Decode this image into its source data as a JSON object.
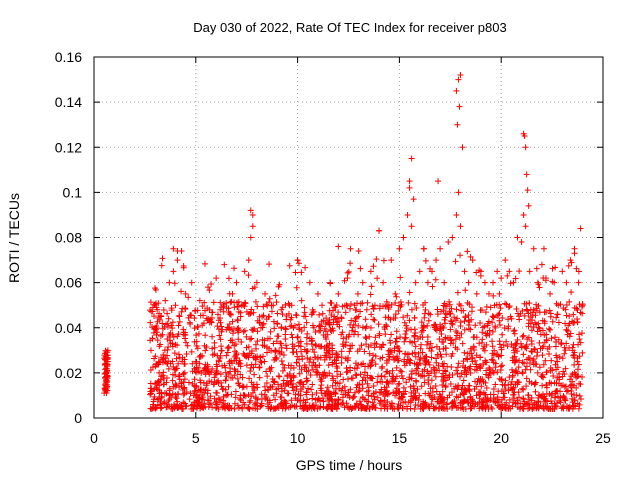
{
  "chart_data": {
    "type": "scatter",
    "title": "Day 030 of 2022, Rate Of TEC Index for receiver p803",
    "xlabel": "GPS time / hours",
    "ylabel": "ROTI / TECUs",
    "xlim": [
      0,
      25
    ],
    "ylim": [
      0,
      0.16
    ],
    "x_ticks": [
      0,
      5,
      10,
      15,
      20,
      25
    ],
    "x_tick_labels": [
      "0",
      "5",
      "10",
      "15",
      "20",
      "25"
    ],
    "y_ticks": [
      0,
      0.02,
      0.04,
      0.06,
      0.08,
      0.1,
      0.12,
      0.14,
      0.16
    ],
    "y_tick_labels": [
      "0",
      "0.02",
      "0.04",
      "0.06",
      "0.08",
      "0.1",
      "0.12",
      "0.14",
      "0.16"
    ],
    "grid": true,
    "marker": "+",
    "marker_color": "#ff0000",
    "series": [
      {
        "name": "ROTI",
        "x": [
          0.5,
          0.55,
          0.6,
          0.62,
          0.65,
          0.68,
          0.55,
          0.6,
          0.58,
          0.63,
          2.8,
          2.85,
          2.9,
          3.0,
          3.1,
          3.2,
          3.3,
          3.4,
          3.5,
          3.6,
          3.7,
          3.8,
          3.9,
          4.0,
          4.1,
          4.2,
          4.3,
          4.4,
          4.5,
          4.6,
          4.8,
          5.0,
          5.2,
          5.4,
          5.6,
          5.8,
          6.0,
          6.2,
          6.4,
          6.6,
          6.8,
          7.0,
          7.2,
          7.4,
          7.6,
          7.7,
          7.8,
          7.9,
          8.0,
          8.2,
          8.4,
          8.6,
          8.8,
          9.0,
          9.2,
          9.4,
          9.6,
          9.8,
          10.0,
          10.2,
          10.4,
          10.6,
          10.8,
          11.0,
          11.2,
          11.4,
          11.6,
          11.8,
          12.0,
          12.2,
          12.4,
          12.6,
          12.8,
          13.0,
          13.2,
          13.4,
          13.6,
          13.8,
          14.0,
          14.2,
          14.4,
          14.6,
          14.8,
          15.0,
          15.2,
          15.4,
          15.5,
          15.6,
          15.8,
          16.0,
          16.2,
          16.4,
          16.6,
          16.8,
          17.0,
          17.2,
          17.4,
          17.6,
          17.8,
          17.9,
          18.0,
          18.2,
          18.4,
          18.6,
          18.8,
          19.0,
          19.2,
          19.4,
          19.6,
          19.8,
          20.0,
          20.2,
          20.4,
          20.6,
          20.8,
          21.0,
          21.1,
          21.2,
          21.4,
          21.6,
          21.8,
          22.0,
          22.2,
          22.4,
          22.6,
          22.8,
          23.0,
          23.2,
          23.4,
          23.6,
          23.8,
          24.0,
          3.9,
          4.1,
          7.7,
          7.8,
          10.0,
          12.0,
          13.0,
          14.0,
          15.2,
          15.5,
          15.6,
          15.7,
          16.2,
          16.9,
          17.8,
          17.9,
          18.0,
          17.85,
          17.95,
          18.1,
          19.0,
          20.3,
          21.1,
          21.15,
          21.2,
          21.25,
          21.3,
          21.35,
          22.1,
          23.6,
          23.9
        ],
        "y": [
          0.011,
          0.018,
          0.022,
          0.026,
          0.014,
          0.03,
          0.012,
          0.02,
          0.016,
          0.024,
          0.03,
          0.012,
          0.006,
          0.015,
          0.038,
          0.02,
          0.045,
          0.028,
          0.052,
          0.035,
          0.06,
          0.041,
          0.065,
          0.05,
          0.07,
          0.045,
          0.074,
          0.038,
          0.055,
          0.032,
          0.06,
          0.025,
          0.052,
          0.042,
          0.058,
          0.036,
          0.062,
          0.048,
          0.068,
          0.04,
          0.055,
          0.06,
          0.045,
          0.065,
          0.07,
          0.08,
          0.085,
          0.058,
          0.06,
          0.04,
          0.055,
          0.045,
          0.05,
          0.042,
          0.048,
          0.035,
          0.05,
          0.04,
          0.07,
          0.052,
          0.045,
          0.06,
          0.04,
          0.055,
          0.05,
          0.035,
          0.06,
          0.045,
          0.055,
          0.038,
          0.05,
          0.075,
          0.05,
          0.045,
          0.06,
          0.048,
          0.065,
          0.05,
          0.083,
          0.06,
          0.05,
          0.07,
          0.055,
          0.075,
          0.08,
          0.09,
          0.105,
          0.085,
          0.06,
          0.065,
          0.075,
          0.06,
          0.065,
          0.07,
          0.075,
          0.06,
          0.078,
          0.08,
          0.09,
          0.1,
          0.085,
          0.065,
          0.06,
          0.07,
          0.055,
          0.065,
          0.06,
          0.055,
          0.06,
          0.065,
          0.062,
          0.07,
          0.065,
          0.06,
          0.08,
          0.078,
          0.09,
          0.085,
          0.065,
          0.075,
          0.06,
          0.068,
          0.062,
          0.055,
          0.06,
          0.05,
          0.065,
          0.06,
          0.07,
          0.075,
          0.06,
          0.05,
          0.075,
          0.074,
          0.092,
          0.09,
          0.07,
          0.076,
          0.074,
          0.083,
          0.08,
          0.102,
          0.115,
          0.097,
          0.075,
          0.105,
          0.145,
          0.15,
          0.152,
          0.13,
          0.138,
          0.12,
          0.063,
          0.063,
          0.126,
          0.125,
          0.12,
          0.108,
          0.101,
          0.094,
          0.075,
          0.073,
          0.084
        ]
      }
    ]
  }
}
